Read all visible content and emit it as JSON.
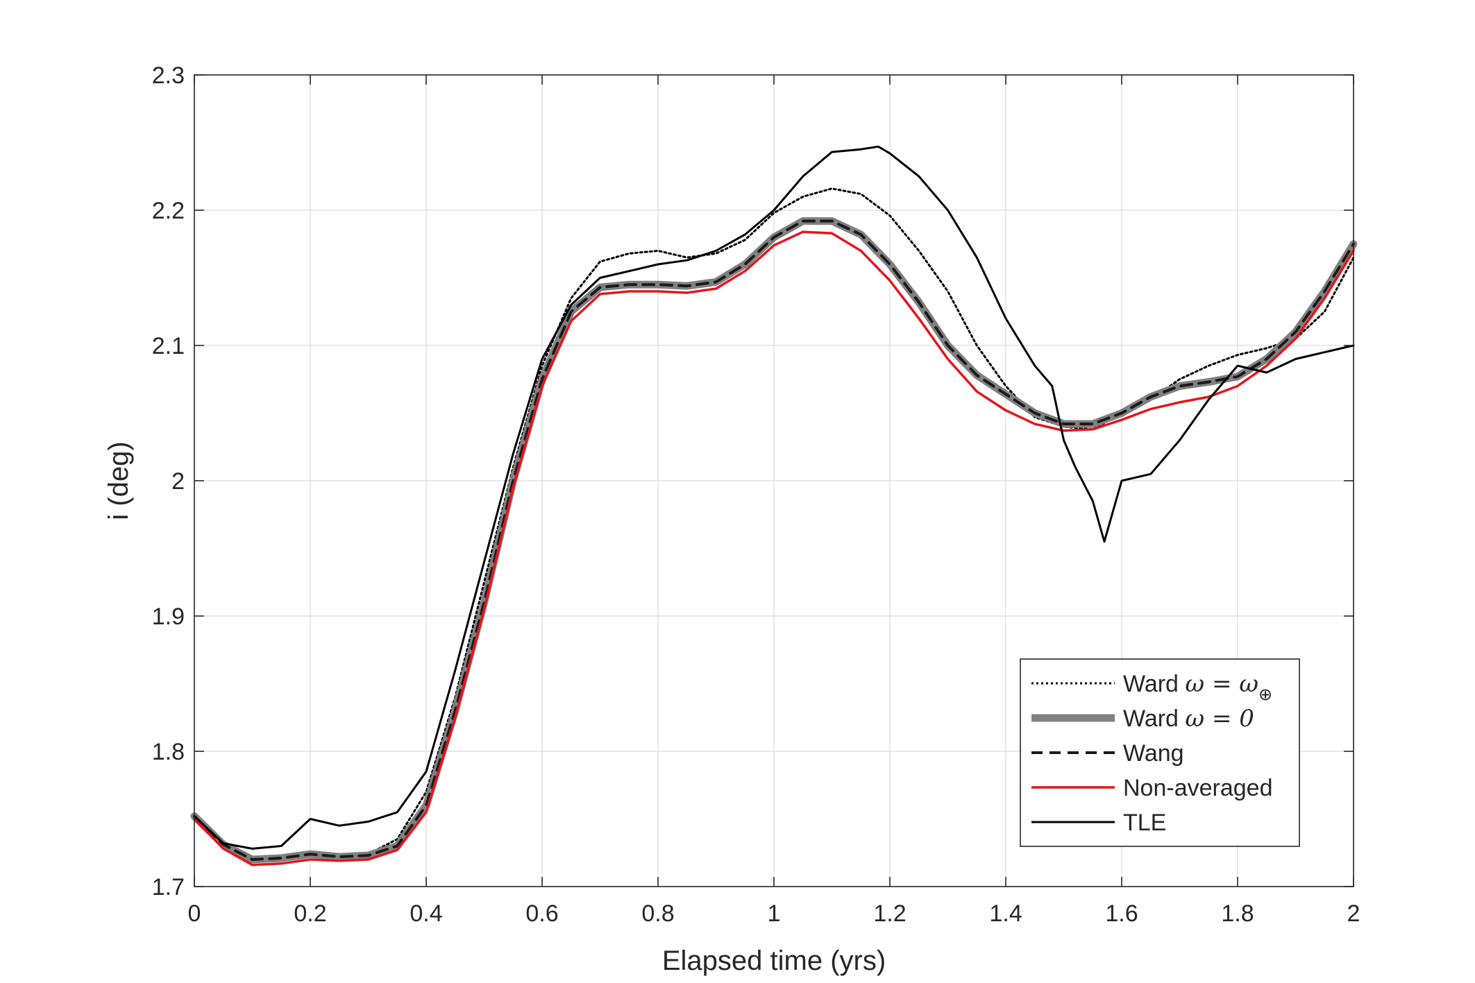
{
  "chart_data": {
    "type": "line",
    "title": "",
    "xlabel": "Elapsed time (yrs)",
    "ylabel": "i (deg)",
    "xlim": [
      0,
      2
    ],
    "ylim": [
      1.7,
      2.3
    ],
    "xticks": [
      "0",
      "0.2",
      "0.4",
      "0.6",
      "0.8",
      "1",
      "1.2",
      "1.4",
      "1.6",
      "1.8",
      "2"
    ],
    "yticks": [
      "1.7",
      "1.8",
      "1.9",
      "2",
      "2.1",
      "2.2",
      "2.3"
    ],
    "grid": true,
    "legend_position": "bottom-right",
    "colors": {
      "ward_earth": "#000000",
      "ward_zero": "#808080",
      "wang": "#1a1a1a",
      "non_averaged": "#e8141a",
      "tle": "#000000",
      "axis": "#262626",
      "grid": "#dcdcdc"
    },
    "series": [
      {
        "name": "Ward ω = ω⊕",
        "legend_text": "Ward ",
        "legend_sym": "ω = ω",
        "legend_sub": "⊕",
        "style": "dotted",
        "x": [
          0,
          0.05,
          0.1,
          0.15,
          0.2,
          0.25,
          0.3,
          0.35,
          0.4,
          0.45,
          0.5,
          0.55,
          0.6,
          0.65,
          0.7,
          0.75,
          0.8,
          0.85,
          0.9,
          0.95,
          1.0,
          1.05,
          1.1,
          1.15,
          1.2,
          1.25,
          1.3,
          1.35,
          1.4,
          1.45,
          1.5,
          1.55,
          1.6,
          1.65,
          1.7,
          1.75,
          1.8,
          1.85,
          1.9,
          1.95,
          2.0
        ],
        "y": [
          1.752,
          1.733,
          1.722,
          1.723,
          1.726,
          1.723,
          1.724,
          1.735,
          1.77,
          1.84,
          1.925,
          2.01,
          2.085,
          2.135,
          2.162,
          2.168,
          2.17,
          2.165,
          2.168,
          2.178,
          2.198,
          2.21,
          2.216,
          2.212,
          2.196,
          2.17,
          2.14,
          2.1,
          2.07,
          2.047,
          2.04,
          2.038,
          2.05,
          2.06,
          2.075,
          2.085,
          2.093,
          2.098,
          2.105,
          2.125,
          2.165
        ]
      },
      {
        "name": "Ward ω = 0",
        "legend_text": "Ward ",
        "legend_sym": "ω = 0",
        "legend_sub": "",
        "style": "thick",
        "x": [
          0,
          0.05,
          0.1,
          0.15,
          0.2,
          0.25,
          0.3,
          0.35,
          0.4,
          0.45,
          0.5,
          0.55,
          0.6,
          0.65,
          0.7,
          0.75,
          0.8,
          0.85,
          0.9,
          0.95,
          1.0,
          1.05,
          1.1,
          1.15,
          1.2,
          1.25,
          1.3,
          1.35,
          1.4,
          1.45,
          1.5,
          1.55,
          1.6,
          1.65,
          1.7,
          1.75,
          1.8,
          1.85,
          1.9,
          1.95,
          2.0
        ],
        "y": [
          1.752,
          1.731,
          1.72,
          1.721,
          1.724,
          1.722,
          1.723,
          1.73,
          1.76,
          1.83,
          1.91,
          2.0,
          2.075,
          2.125,
          2.143,
          2.145,
          2.145,
          2.144,
          2.147,
          2.16,
          2.18,
          2.192,
          2.192,
          2.182,
          2.16,
          2.132,
          2.1,
          2.078,
          2.064,
          2.05,
          2.042,
          2.042,
          2.05,
          2.062,
          2.07,
          2.073,
          2.077,
          2.09,
          2.11,
          2.14,
          2.175
        ]
      },
      {
        "name": "Wang",
        "legend_text": "Wang",
        "legend_sym": "",
        "legend_sub": "",
        "style": "dashed",
        "x": [
          0,
          0.05,
          0.1,
          0.15,
          0.2,
          0.25,
          0.3,
          0.35,
          0.4,
          0.45,
          0.5,
          0.55,
          0.6,
          0.65,
          0.7,
          0.75,
          0.8,
          0.85,
          0.9,
          0.95,
          1.0,
          1.05,
          1.1,
          1.15,
          1.2,
          1.25,
          1.3,
          1.35,
          1.4,
          1.45,
          1.5,
          1.55,
          1.6,
          1.65,
          1.7,
          1.75,
          1.8,
          1.85,
          1.9,
          1.95,
          2.0
        ],
        "y": [
          1.752,
          1.731,
          1.72,
          1.721,
          1.724,
          1.722,
          1.723,
          1.73,
          1.76,
          1.83,
          1.91,
          2.0,
          2.075,
          2.125,
          2.143,
          2.145,
          2.145,
          2.144,
          2.147,
          2.16,
          2.18,
          2.192,
          2.192,
          2.182,
          2.16,
          2.132,
          2.1,
          2.078,
          2.064,
          2.05,
          2.042,
          2.042,
          2.05,
          2.062,
          2.07,
          2.073,
          2.077,
          2.09,
          2.11,
          2.14,
          2.175
        ]
      },
      {
        "name": "Non-averaged",
        "legend_text": "Non-averaged",
        "legend_sym": "",
        "legend_sub": "",
        "style": "solid-red",
        "x": [
          0,
          0.05,
          0.1,
          0.15,
          0.2,
          0.25,
          0.3,
          0.35,
          0.4,
          0.45,
          0.5,
          0.55,
          0.6,
          0.65,
          0.7,
          0.75,
          0.8,
          0.85,
          0.9,
          0.95,
          1.0,
          1.05,
          1.1,
          1.15,
          1.2,
          1.25,
          1.3,
          1.35,
          1.4,
          1.45,
          1.5,
          1.55,
          1.6,
          1.65,
          1.7,
          1.75,
          1.8,
          1.85,
          1.9,
          1.95,
          2.0
        ],
        "y": [
          1.75,
          1.728,
          1.716,
          1.717,
          1.72,
          1.719,
          1.72,
          1.727,
          1.755,
          1.825,
          1.905,
          1.995,
          2.07,
          2.118,
          2.138,
          2.14,
          2.14,
          2.139,
          2.142,
          2.155,
          2.174,
          2.184,
          2.183,
          2.17,
          2.148,
          2.12,
          2.09,
          2.066,
          2.052,
          2.042,
          2.037,
          2.038,
          2.045,
          2.053,
          2.058,
          2.062,
          2.07,
          2.085,
          2.105,
          2.135,
          2.17
        ]
      },
      {
        "name": "TLE",
        "legend_text": "TLE",
        "legend_sym": "",
        "legend_sub": "",
        "style": "solid-black",
        "x": [
          0,
          0.05,
          0.1,
          0.15,
          0.2,
          0.25,
          0.3,
          0.35,
          0.4,
          0.45,
          0.5,
          0.55,
          0.6,
          0.65,
          0.7,
          0.75,
          0.8,
          0.85,
          0.9,
          0.95,
          1.0,
          1.05,
          1.1,
          1.15,
          1.18,
          1.2,
          1.25,
          1.3,
          1.35,
          1.4,
          1.45,
          1.48,
          1.5,
          1.52,
          1.55,
          1.57,
          1.6,
          1.65,
          1.7,
          1.75,
          1.8,
          1.85,
          1.9,
          1.95,
          2.0
        ],
        "y": [
          1.752,
          1.732,
          1.728,
          1.73,
          1.75,
          1.745,
          1.748,
          1.755,
          1.785,
          1.86,
          1.94,
          2.02,
          2.09,
          2.13,
          2.15,
          2.155,
          2.16,
          2.163,
          2.17,
          2.182,
          2.2,
          2.225,
          2.243,
          2.245,
          2.247,
          2.242,
          2.225,
          2.2,
          2.165,
          2.12,
          2.085,
          2.07,
          2.03,
          2.01,
          1.985,
          1.955,
          2.0,
          2.005,
          2.03,
          2.06,
          2.085,
          2.08,
          2.09,
          2.095,
          2.1
        ]
      }
    ]
  }
}
